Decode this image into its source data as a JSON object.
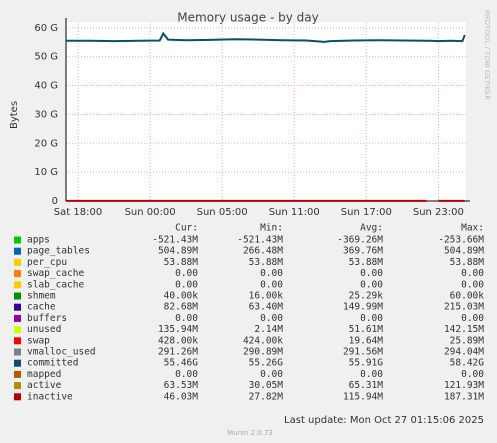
{
  "chart_data": {
    "type": "line",
    "title": "Memory usage - by day",
    "y_label": "Bytes",
    "side_text": "RRDTOOL / TOBI OETIKER",
    "xlim": [
      0,
      33.3
    ],
    "xticks": [
      {
        "value": 1,
        "label": "Sat 18:00"
      },
      {
        "value": 7,
        "label": "Sun 00:00"
      },
      {
        "value": 13,
        "label": "Sun 05:00"
      },
      {
        "value": 19,
        "label": "Sun 11:00"
      },
      {
        "value": 25,
        "label": "Sun 17:00"
      },
      {
        "value": 31,
        "label": "Sun 23:00"
      }
    ],
    "ylim": [
      0,
      62
    ],
    "yticks": [
      {
        "value": 0,
        "label": "0"
      },
      {
        "value": 10,
        "label": "10 G"
      },
      {
        "value": 20,
        "label": "20 G"
      },
      {
        "value": 30,
        "label": "30 G"
      },
      {
        "value": 40,
        "label": "40 G"
      },
      {
        "value": 50,
        "label": "50 G"
      },
      {
        "value": 60,
        "label": "60 G"
      }
    ],
    "grid": true,
    "x": [
      0,
      2,
      4,
      6,
      7.8,
      8.1,
      8.5,
      10,
      12,
      14,
      16,
      18,
      20,
      21.5,
      22,
      24,
      26,
      28,
      30,
      30.3,
      31,
      32,
      33,
      33.2
    ],
    "series": [
      {
        "name": "committed",
        "color": "#0b4e6e",
        "values": [
          55.5,
          55.5,
          55.4,
          55.5,
          55.6,
          58.0,
          55.9,
          55.7,
          55.8,
          56.0,
          55.9,
          55.7,
          55.6,
          55.1,
          55.4,
          55.6,
          55.7,
          55.6,
          55.5,
          55.5,
          55.4,
          55.5,
          55.4,
          57.5
        ]
      },
      {
        "name": "inactive",
        "color": "#b30000",
        "values": [
          0.05,
          0.05,
          0.05,
          0.05,
          0.05,
          0.05,
          0.05,
          0.05,
          0.05,
          0.05,
          0.05,
          0.05,
          0.05,
          0.05,
          0.05,
          0.05,
          0.05,
          0.05,
          0.05,
          null,
          0.05,
          0.05,
          0.05,
          0.05
        ]
      }
    ]
  },
  "legend": {
    "headers": [
      "Cur:",
      "Min:",
      "Avg:",
      "Max:"
    ],
    "rows": [
      {
        "name": "apps",
        "color": "#00cc00",
        "cells": [
          "-521.43M",
          "-521.43M",
          "-369.26M",
          "-253.66M"
        ]
      },
      {
        "name": "page_tables",
        "color": "#0066b3",
        "cells": [
          "504.89M",
          "266.48M",
          "369.76M",
          "504.89M"
        ]
      },
      {
        "name": "per_cpu",
        "color": "#ffcc00",
        "cells": [
          "53.88M",
          "53.88M",
          "53.88M",
          "53.88M"
        ]
      },
      {
        "name": "swap_cache",
        "color": "#ff8000",
        "cells": [
          "0.00",
          "0.00",
          "0.00",
          "0.00"
        ]
      },
      {
        "name": "slab_cache",
        "color": "#ffcc00",
        "cells": [
          "0.00",
          "0.00",
          "0.00",
          "0.00"
        ]
      },
      {
        "name": "shmem",
        "color": "#008f00",
        "cells": [
          "40.00k",
          "16.00k",
          "25.29k",
          "60.00k"
        ]
      },
      {
        "name": "cache",
        "color": "#330099",
        "cells": [
          "82.68M",
          "63.40M",
          "149.99M",
          "215.03M"
        ]
      },
      {
        "name": "buffers",
        "color": "#990099",
        "cells": [
          "0.00",
          "0.00",
          "0.00",
          "0.00"
        ]
      },
      {
        "name": "unused",
        "color": "#ccff00",
        "cells": [
          "135.94M",
          "2.14M",
          "51.61M",
          "142.15M"
        ]
      },
      {
        "name": "swap",
        "color": "#ff0000",
        "cells": [
          "428.00k",
          "424.00k",
          "19.64M",
          "25.89M"
        ]
      },
      {
        "name": "vmalloc_used",
        "color": "#808080",
        "cells": [
          "291.26M",
          "290.89M",
          "291.56M",
          "294.04M"
        ]
      },
      {
        "name": "committed",
        "color": "#0b4e6e",
        "cells": [
          "55.46G",
          "55.26G",
          "55.91G",
          "58.42G"
        ]
      },
      {
        "name": "mapped",
        "color": "#b35900",
        "cells": [
          "0.00",
          "0.00",
          "0.00",
          "0.00"
        ]
      },
      {
        "name": "active",
        "color": "#b38f00",
        "cells": [
          "63.53M",
          "30.05M",
          "65.31M",
          "121.93M"
        ]
      },
      {
        "name": "inactive",
        "color": "#b30000",
        "cells": [
          "46.03M",
          "27.82M",
          "115.94M",
          "187.31M"
        ]
      }
    ],
    "last_update": "Last update: Mon Oct 27 01:15:06 2025",
    "footer": "Munin 2.0.73"
  }
}
